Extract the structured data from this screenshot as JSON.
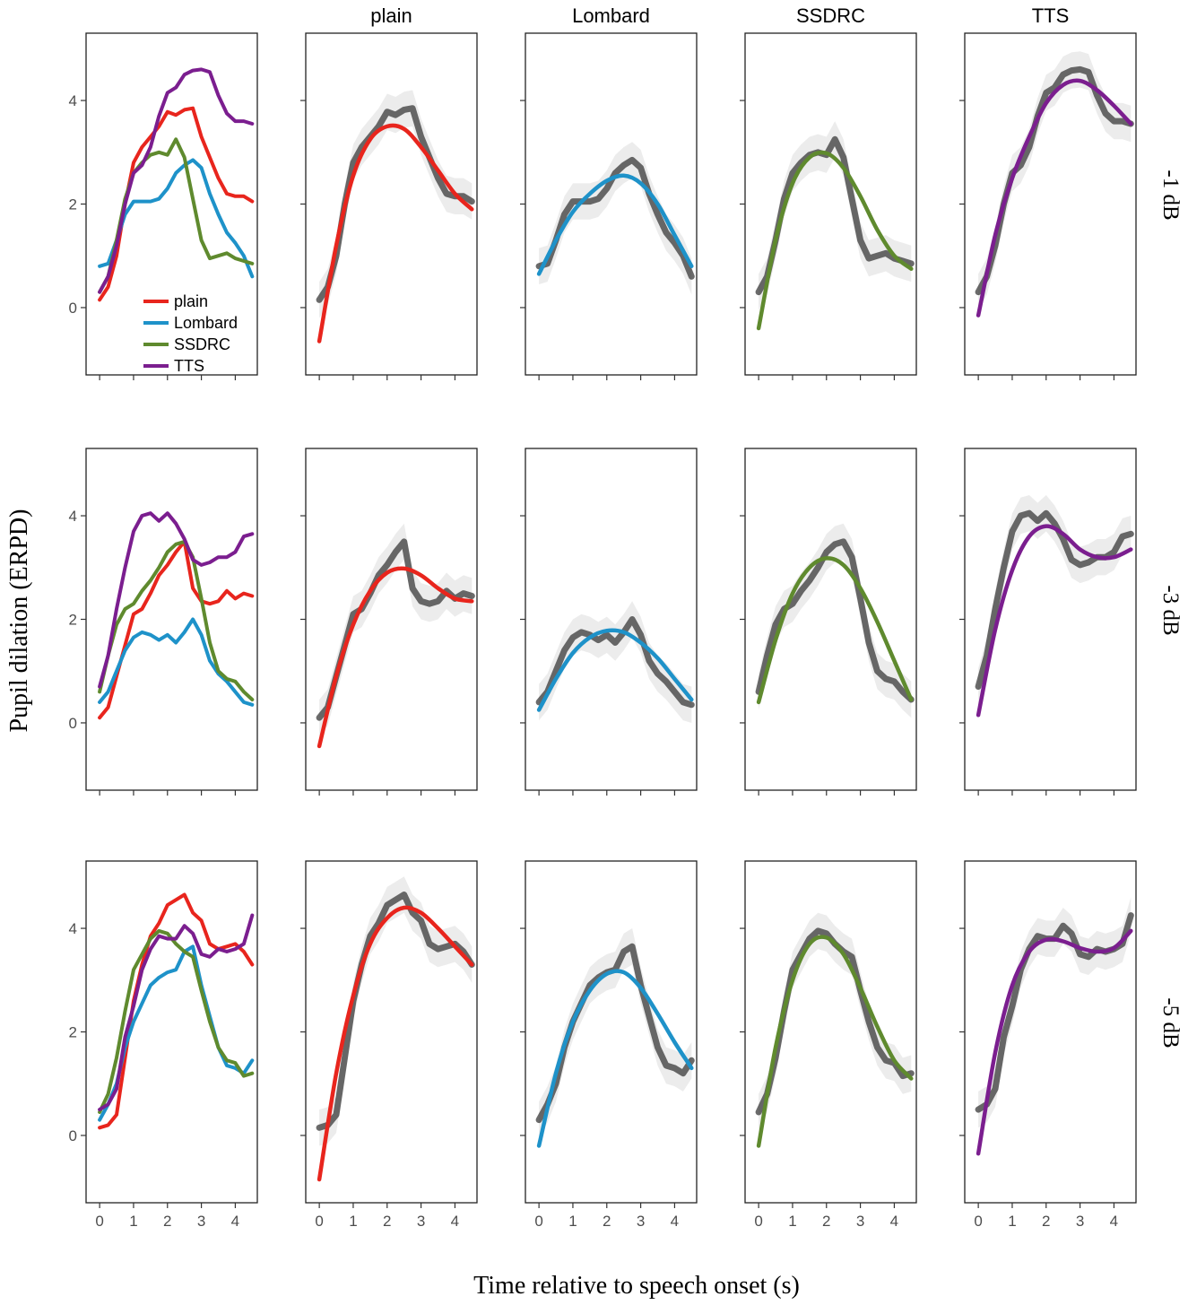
{
  "chart_data": {
    "type": "line",
    "title": "",
    "xlabel": "Time relative to speech onset (s)",
    "ylabel": "Pupil dilation (ERPD)",
    "x_ticks": [
      0,
      1,
      2,
      3,
      4
    ],
    "x_tick_labels": [
      "0",
      "1",
      "2",
      "3",
      "4"
    ],
    "xlim": [
      -0.4,
      4.65
    ],
    "y_ticks": [
      0,
      2,
      4
    ],
    "y_tick_labels": [
      "0",
      "2",
      "4"
    ],
    "ylim": [
      -1.3,
      5.3
    ],
    "column_labels": [
      "plain",
      "Lombard",
      "SSDRC",
      "TTS"
    ],
    "row_labels": [
      "-1 dB",
      "-3 dB",
      "-5 dB"
    ],
    "legend": [
      "plain",
      "Lombard",
      "SSDRC",
      "TTS"
    ],
    "legend_position": "bottom-left of first panel",
    "colors": {
      "plain": "#e8251d",
      "Lombard": "#1e92c9",
      "SSDRC": "#5f8a2e",
      "TTS": "#7b1e8f",
      "observed": "#3a3a3a",
      "band": "#dcdcdc"
    },
    "rows": [
      {
        "label": "-1 dB",
        "observed": {
          "plain": {
            "x": [
              0,
              0.25,
              0.5,
              0.75,
              1,
              1.25,
              1.5,
              1.75,
              2,
              2.25,
              2.5,
              2.75,
              3,
              3.25,
              3.5,
              3.75,
              4,
              4.25,
              4.5
            ],
            "y": [
              0.15,
              0.4,
              1.0,
              2.0,
              2.8,
              3.1,
              3.3,
              3.5,
              3.78,
              3.72,
              3.82,
              3.85,
              3.3,
              2.9,
              2.5,
              2.2,
              2.15,
              2.15,
              2.05
            ]
          },
          "Lombard": {
            "x": [
              0,
              0.25,
              0.5,
              0.75,
              1,
              1.25,
              1.5,
              1.75,
              2,
              2.25,
              2.5,
              2.75,
              3,
              3.25,
              3.5,
              3.75,
              4,
              4.25,
              4.5
            ],
            "y": [
              0.8,
              0.85,
              1.3,
              1.8,
              2.05,
              2.05,
              2.05,
              2.1,
              2.3,
              2.6,
              2.75,
              2.85,
              2.7,
              2.2,
              1.8,
              1.45,
              1.25,
              1.0,
              0.6
            ]
          },
          "SSDRC": {
            "x": [
              0,
              0.25,
              0.5,
              0.75,
              1,
              1.25,
              1.5,
              1.75,
              2,
              2.25,
              2.5,
              2.75,
              3,
              3.25,
              3.5,
              3.75,
              4,
              4.25,
              4.5
            ],
            "y": [
              0.3,
              0.6,
              1.3,
              2.1,
              2.6,
              2.8,
              2.95,
              3.0,
              2.95,
              3.25,
              2.9,
              2.1,
              1.3,
              0.95,
              1.0,
              1.05,
              0.95,
              0.9,
              0.85
            ]
          },
          "TTS": {
            "x": [
              0,
              0.25,
              0.5,
              0.75,
              1,
              1.25,
              1.5,
              1.75,
              2,
              2.25,
              2.5,
              2.75,
              3,
              3.25,
              3.5,
              3.75,
              4,
              4.25,
              4.5
            ],
            "y": [
              0.3,
              0.6,
              1.2,
              2.0,
              2.6,
              2.75,
              3.1,
              3.7,
              4.15,
              4.25,
              4.5,
              4.58,
              4.6,
              4.55,
              4.1,
              3.75,
              3.6,
              3.6,
              3.55
            ]
          }
        },
        "fitted": {
          "plain": {
            "x": [
              0,
              0.5,
              1,
              1.5,
              2,
              2.5,
              3,
              3.5,
              4,
              4.5
            ],
            "y": [
              -0.65,
              1.2,
              2.55,
              3.25,
              3.5,
              3.45,
              3.1,
              2.65,
              2.2,
              1.9
            ]
          },
          "Lombard": {
            "x": [
              0,
              0.5,
              1,
              1.5,
              2,
              2.5,
              3,
              3.5,
              4,
              4.5
            ],
            "y": [
              0.65,
              1.3,
              1.85,
              2.2,
              2.45,
              2.55,
              2.4,
              2.0,
              1.4,
              0.8
            ]
          },
          "SSDRC": {
            "x": [
              0,
              0.5,
              1,
              1.5,
              2,
              2.5,
              3,
              3.5,
              4,
              4.5
            ],
            "y": [
              -0.4,
              1.3,
              2.4,
              2.9,
              2.98,
              2.7,
              2.15,
              1.5,
              1.0,
              0.75
            ]
          },
          "TTS": {
            "x": [
              0,
              0.5,
              1,
              1.5,
              2,
              2.5,
              3,
              3.5,
              4,
              4.5
            ],
            "y": [
              -0.15,
              1.4,
              2.5,
              3.3,
              3.95,
              4.3,
              4.38,
              4.2,
              3.9,
              3.55
            ]
          }
        }
      },
      {
        "label": "-3 dB",
        "observed": {
          "plain": {
            "x": [
              0,
              0.25,
              0.5,
              0.75,
              1,
              1.25,
              1.5,
              1.75,
              2,
              2.25,
              2.5,
              2.75,
              3,
              3.25,
              3.5,
              3.75,
              4,
              4.25,
              4.5
            ],
            "y": [
              0.1,
              0.3,
              0.9,
              1.5,
              2.1,
              2.2,
              2.5,
              2.85,
              3.05,
              3.3,
              3.5,
              2.6,
              2.35,
              2.3,
              2.35,
              2.55,
              2.4,
              2.5,
              2.45
            ]
          },
          "Lombard": {
            "x": [
              0,
              0.25,
              0.5,
              0.75,
              1,
              1.25,
              1.5,
              1.75,
              2,
              2.25,
              2.5,
              2.75,
              3,
              3.25,
              3.5,
              3.75,
              4,
              4.25,
              4.5
            ],
            "y": [
              0.4,
              0.6,
              1.0,
              1.4,
              1.65,
              1.75,
              1.7,
              1.6,
              1.7,
              1.55,
              1.75,
              2.0,
              1.7,
              1.2,
              0.95,
              0.8,
              0.6,
              0.4,
              0.35
            ]
          },
          "SSDRC": {
            "x": [
              0,
              0.25,
              0.5,
              0.75,
              1,
              1.25,
              1.5,
              1.75,
              2,
              2.25,
              2.5,
              2.75,
              3,
              3.25,
              3.5,
              3.75,
              4,
              4.25,
              4.5
            ],
            "y": [
              0.6,
              1.3,
              1.9,
              2.2,
              2.3,
              2.55,
              2.75,
              3.0,
              3.3,
              3.45,
              3.5,
              3.2,
              2.4,
              1.55,
              1.0,
              0.85,
              0.8,
              0.6,
              0.45
            ]
          },
          "TTS": {
            "x": [
              0,
              0.25,
              0.5,
              0.75,
              1,
              1.25,
              1.5,
              1.75,
              2,
              2.25,
              2.5,
              2.75,
              3,
              3.25,
              3.5,
              3.75,
              4,
              4.25,
              4.5
            ],
            "y": [
              0.7,
              1.3,
              2.2,
              3.0,
              3.7,
              4.0,
              4.05,
              3.9,
              4.05,
              3.85,
              3.55,
              3.15,
              3.05,
              3.1,
              3.2,
              3.2,
              3.3,
              3.6,
              3.65
            ]
          }
        },
        "fitted": {
          "plain": {
            "x": [
              0,
              0.5,
              1,
              1.5,
              2,
              2.5,
              3,
              3.5,
              4,
              4.5
            ],
            "y": [
              -0.45,
              0.9,
              1.9,
              2.55,
              2.9,
              2.98,
              2.85,
              2.6,
              2.4,
              2.35
            ]
          },
          "Lombard": {
            "x": [
              0,
              0.5,
              1,
              1.5,
              2,
              2.5,
              3,
              3.5,
              4,
              4.5
            ],
            "y": [
              0.25,
              0.85,
              1.35,
              1.65,
              1.78,
              1.75,
              1.55,
              1.25,
              0.85,
              0.45
            ]
          },
          "SSDRC": {
            "x": [
              0,
              0.5,
              1,
              1.5,
              2,
              2.5,
              3,
              3.5,
              4,
              4.5
            ],
            "y": [
              0.4,
              1.6,
              2.5,
              3.0,
              3.18,
              3.05,
              2.6,
              1.95,
              1.2,
              0.45
            ]
          },
          "TTS": {
            "x": [
              0,
              0.5,
              1,
              1.5,
              2,
              2.5,
              3,
              3.5,
              4,
              4.5
            ],
            "y": [
              0.15,
              1.8,
              2.95,
              3.6,
              3.8,
              3.65,
              3.35,
              3.2,
              3.2,
              3.35
            ]
          }
        }
      },
      {
        "label": "-5 dB",
        "observed": {
          "plain": {
            "x": [
              0,
              0.25,
              0.5,
              0.75,
              1,
              1.25,
              1.5,
              1.75,
              2,
              2.25,
              2.5,
              2.75,
              3,
              3.25,
              3.5,
              3.75,
              4,
              4.25,
              4.5
            ],
            "y": [
              0.15,
              0.2,
              0.4,
              1.5,
              2.6,
              3.3,
              3.85,
              4.1,
              4.45,
              4.55,
              4.65,
              4.3,
              4.15,
              3.7,
              3.6,
              3.65,
              3.7,
              3.55,
              3.3
            ]
          },
          "Lombard": {
            "x": [
              0,
              0.25,
              0.5,
              0.75,
              1,
              1.25,
              1.5,
              1.75,
              2,
              2.25,
              2.5,
              2.75,
              3,
              3.25,
              3.5,
              3.75,
              4,
              4.25,
              4.5
            ],
            "y": [
              0.3,
              0.6,
              1.0,
              1.7,
              2.2,
              2.55,
              2.9,
              3.05,
              3.15,
              3.2,
              3.55,
              3.65,
              2.9,
              2.3,
              1.7,
              1.35,
              1.3,
              1.2,
              1.45
            ]
          },
          "SSDRC": {
            "x": [
              0,
              0.25,
              0.5,
              0.75,
              1,
              1.25,
              1.5,
              1.75,
              2,
              2.25,
              2.5,
              2.75,
              3,
              3.25,
              3.5,
              3.75,
              4,
              4.25,
              4.5
            ],
            "y": [
              0.45,
              0.8,
              1.5,
              2.4,
              3.2,
              3.5,
              3.8,
              3.95,
              3.9,
              3.7,
              3.55,
              3.45,
              2.8,
              2.2,
              1.7,
              1.45,
              1.4,
              1.15,
              1.2
            ]
          },
          "TTS": {
            "x": [
              0,
              0.25,
              0.5,
              0.75,
              1,
              1.25,
              1.5,
              1.75,
              2,
              2.25,
              2.5,
              2.75,
              3,
              3.25,
              3.5,
              3.75,
              4,
              4.25,
              4.5
            ],
            "y": [
              0.5,
              0.6,
              0.9,
              1.9,
              2.5,
              3.2,
              3.6,
              3.85,
              3.8,
              3.8,
              4.05,
              3.9,
              3.5,
              3.45,
              3.6,
              3.55,
              3.6,
              3.7,
              4.25
            ]
          }
        },
        "fitted": {
          "plain": {
            "x": [
              0,
              0.5,
              1,
              1.5,
              2,
              2.5,
              3,
              3.5,
              4,
              4.5
            ],
            "y": [
              -0.85,
              1.2,
              2.7,
              3.7,
              4.2,
              4.4,
              4.3,
              4.0,
              3.65,
              3.3
            ]
          },
          "Lombard": {
            "x": [
              0,
              0.5,
              1,
              1.5,
              2,
              2.5,
              3,
              3.5,
              4,
              4.5
            ],
            "y": [
              -0.2,
              1.2,
              2.2,
              2.8,
              3.12,
              3.15,
              2.85,
              2.35,
              1.8,
              1.3
            ]
          },
          "SSDRC": {
            "x": [
              0,
              0.5,
              1,
              1.5,
              2,
              2.5,
              3,
              3.5,
              4,
              4.5
            ],
            "y": [
              -0.2,
              1.7,
              3.0,
              3.7,
              3.82,
              3.5,
              2.85,
              2.1,
              1.45,
              1.1
            ]
          },
          "TTS": {
            "x": [
              0,
              0.5,
              1,
              1.5,
              2,
              2.5,
              3,
              3.5,
              4,
              4.5
            ],
            "y": [
              -0.35,
              1.6,
              2.9,
              3.55,
              3.78,
              3.75,
              3.62,
              3.55,
              3.62,
              3.95
            ]
          }
        }
      }
    ]
  }
}
